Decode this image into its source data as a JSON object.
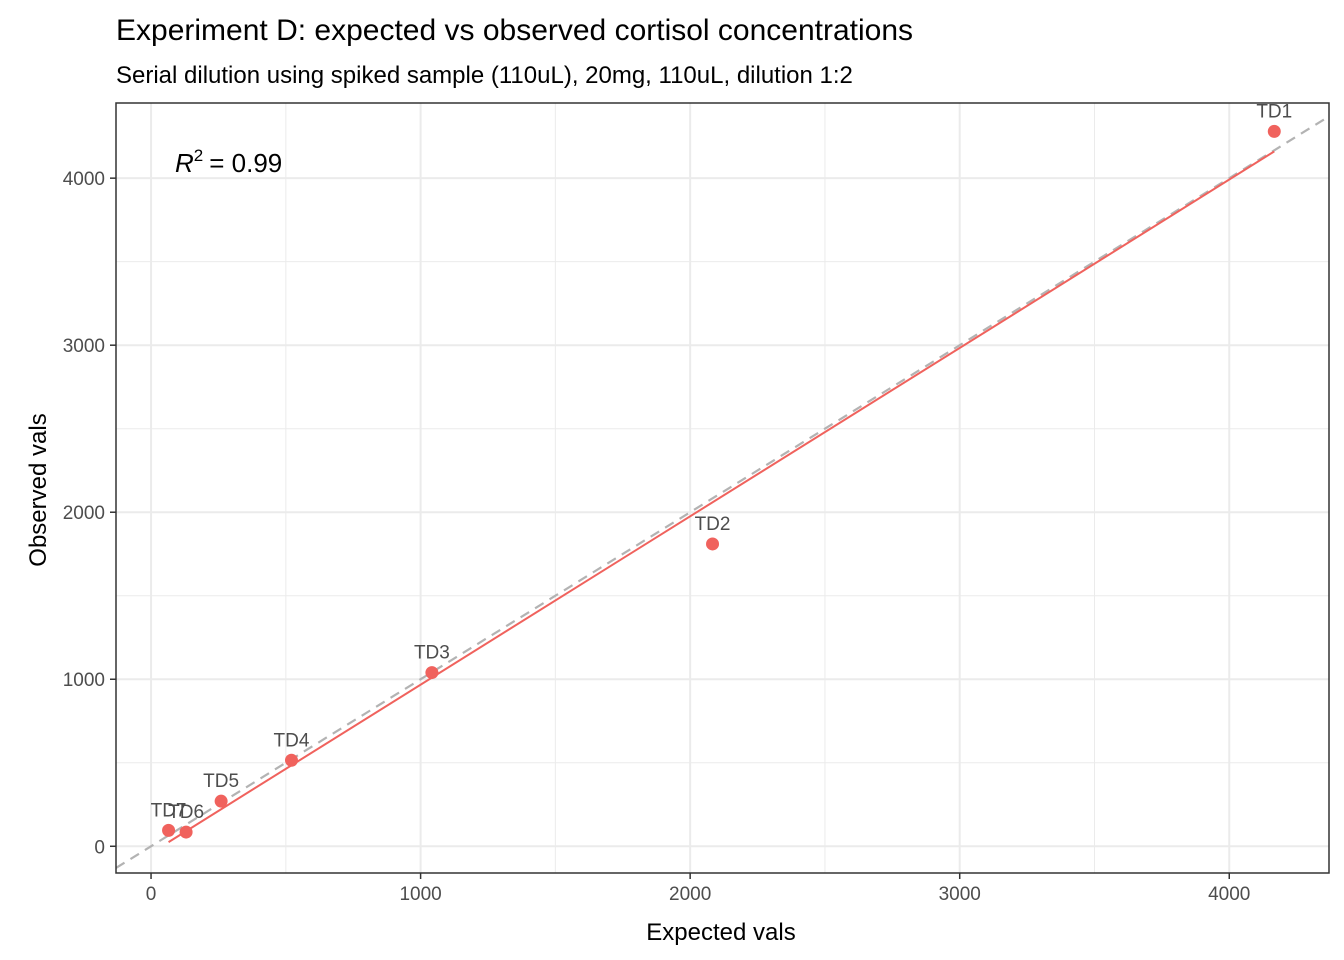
{
  "chart_data": {
    "type": "scatter",
    "title": "Experiment D: expected vs observed cortisol concentrations",
    "subtitle": "Serial dilution using spiked sample (110uL), 20mg, 110uL, dilution 1:2",
    "xlabel": "Expected vals",
    "ylabel": "Observed vals",
    "xlim": [
      -130,
      4370
    ],
    "ylim": [
      -160,
      4450
    ],
    "x_ticks": [
      0,
      1000,
      2000,
      3000,
      4000
    ],
    "y_ticks": [
      0,
      1000,
      2000,
      3000,
      4000
    ],
    "x_tick_labels": [
      "0",
      "1000",
      "2000",
      "3000",
      "4000"
    ],
    "y_tick_labels": [
      "0",
      "1000",
      "2000",
      "3000",
      "4000"
    ],
    "grid": true,
    "points": [
      {
        "label": "TD1",
        "x": 4167,
        "y": 4280
      },
      {
        "label": "TD2",
        "x": 2083,
        "y": 1810
      },
      {
        "label": "TD3",
        "x": 1042,
        "y": 1040
      },
      {
        "label": "TD4",
        "x": 521,
        "y": 515
      },
      {
        "label": "TD5",
        "x": 260,
        "y": 270
      },
      {
        "label": "TD6",
        "x": 130,
        "y": 85
      },
      {
        "label": "TD7",
        "x": 65,
        "y": 95
      }
    ],
    "point_color": "#f0625d",
    "fit_line": {
      "x": [
        65,
        4167
      ],
      "y": [
        25,
        4160
      ],
      "color": "#f0625d"
    },
    "identity_line": {
      "x": [
        -130,
        4370
      ],
      "y": [
        -130,
        4370
      ],
      "color": "#b3b3b3",
      "style": "dashed"
    },
    "annotation": {
      "r2_symbol": "R",
      "r2_exponent": "2",
      "r2_value": "= 0.99"
    }
  }
}
